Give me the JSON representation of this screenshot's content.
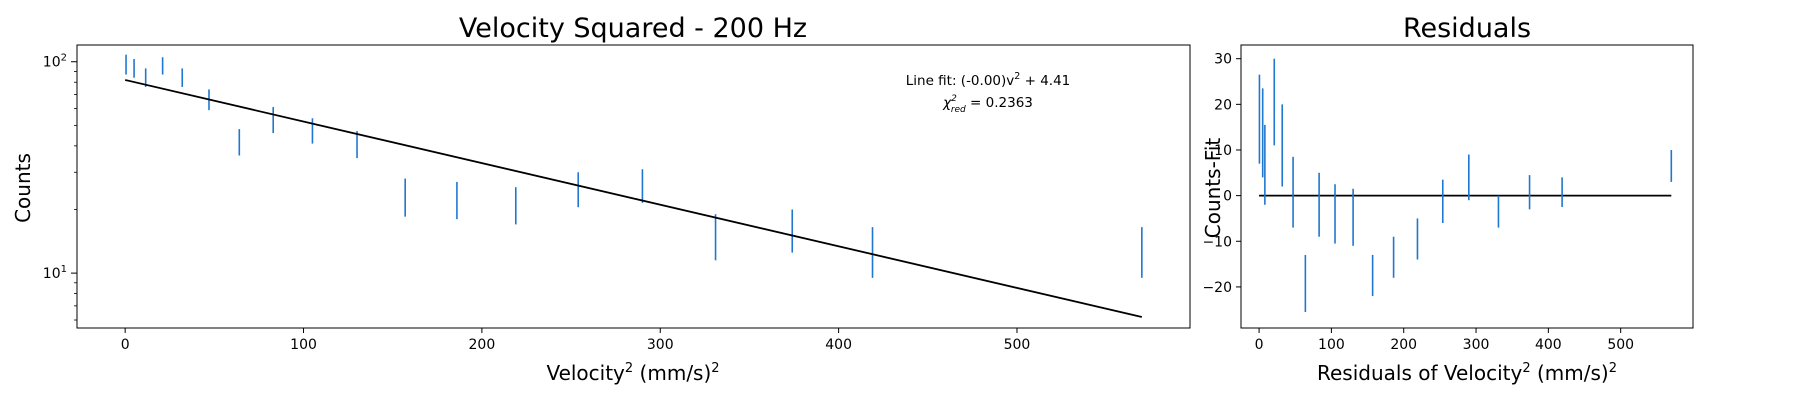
{
  "chart_data": [
    {
      "type": "scatter",
      "title": "Velocity Squared - 200 Hz",
      "xlabel_base": "Velocity",
      "xlabel_sup": "2",
      "xlabel_rest": " (mm/s)",
      "xlabel_sup2": "2",
      "ylabel": "Counts",
      "xlim": [
        -27,
        597
      ],
      "ylim": [
        5.5,
        120
      ],
      "yscale": "log",
      "x_ticks": [
        0,
        100,
        200,
        300,
        400,
        500
      ],
      "y_major_ticks": [
        {
          "value": 10,
          "base": "10",
          "exp": "1"
        },
        {
          "value": 100,
          "base": "10",
          "exp": "2"
        }
      ],
      "grid": false,
      "annotation": {
        "line1_prefix": "Line fit: (-0.00)v",
        "line1_sup": "2",
        "line1_suffix": " + 4.41",
        "line2_chi": "χ",
        "line2_sup": "2",
        "line2_sub": "red",
        "line2_value": " = 0.2363"
      },
      "fit": {
        "x": [
          0,
          570
        ],
        "y": [
          82,
          6.2
        ]
      },
      "error_color": "#1f77d0",
      "fit_color": "#000000",
      "points": [
        {
          "x": 0.5,
          "lo": 87,
          "hi": 108
        },
        {
          "x": 5,
          "lo": 84,
          "hi": 103
        },
        {
          "x": 11.5,
          "lo": 76,
          "hi": 93
        },
        {
          "x": 21,
          "lo": 87,
          "hi": 105
        },
        {
          "x": 32,
          "lo": 76,
          "hi": 93
        },
        {
          "x": 47,
          "lo": 59,
          "hi": 74
        },
        {
          "x": 64,
          "lo": 36,
          "hi": 48
        },
        {
          "x": 83,
          "lo": 46,
          "hi": 61
        },
        {
          "x": 105,
          "lo": 41,
          "hi": 54
        },
        {
          "x": 130,
          "lo": 35,
          "hi": 47
        },
        {
          "x": 157,
          "lo": 18.5,
          "hi": 28
        },
        {
          "x": 186,
          "lo": 18,
          "hi": 27
        },
        {
          "x": 219,
          "lo": 17,
          "hi": 25.5
        },
        {
          "x": 254,
          "lo": 20.5,
          "hi": 30
        },
        {
          "x": 290,
          "lo": 21.5,
          "hi": 31
        },
        {
          "x": 331,
          "lo": 11.5,
          "hi": 19
        },
        {
          "x": 374,
          "lo": 12.5,
          "hi": 20
        },
        {
          "x": 419,
          "lo": 9.5,
          "hi": 16.5
        },
        {
          "x": 570,
          "lo": 9.5,
          "hi": 16.5
        }
      ]
    },
    {
      "type": "scatter",
      "title": "Residuals",
      "xlabel_base": "Residuals of Velocity",
      "xlabel_sup": "2",
      "xlabel_rest": " (mm/s)",
      "xlabel_sup2": "2",
      "ylabel": "Counts-Fit",
      "xlim": [
        -25,
        600
      ],
      "ylim": [
        -29,
        33
      ],
      "yscale": "linear",
      "x_ticks": [
        0,
        100,
        200,
        300,
        400,
        500
      ],
      "y_ticks": [
        -20,
        -10,
        0,
        10,
        20,
        30
      ],
      "y_tick_labels": [
        "−20",
        "−10",
        "0",
        "10",
        "20",
        "30"
      ],
      "grid": false,
      "zero_line": {
        "x": [
          0,
          570
        ],
        "y": 0
      },
      "error_color": "#1f77d0",
      "zero_color": "#000000",
      "points": [
        {
          "x": 0.5,
          "lo": 7,
          "hi": 26.5
        },
        {
          "x": 5,
          "lo": 4,
          "hi": 23.5
        },
        {
          "x": 8,
          "lo": -2,
          "hi": 15.5
        },
        {
          "x": 21,
          "lo": 11,
          "hi": 30
        },
        {
          "x": 32,
          "lo": 2,
          "hi": 20
        },
        {
          "x": 47,
          "lo": -7,
          "hi": 8.5
        },
        {
          "x": 64,
          "lo": -25.5,
          "hi": -13
        },
        {
          "x": 83,
          "lo": -9,
          "hi": 5
        },
        {
          "x": 105,
          "lo": -10.5,
          "hi": 2.5
        },
        {
          "x": 130,
          "lo": -11,
          "hi": 1.5
        },
        {
          "x": 157,
          "lo": -22,
          "hi": -13
        },
        {
          "x": 186,
          "lo": -18,
          "hi": -9
        },
        {
          "x": 219,
          "lo": -14,
          "hi": -5
        },
        {
          "x": 254,
          "lo": -6,
          "hi": 3.5
        },
        {
          "x": 290,
          "lo": -1,
          "hi": 9
        },
        {
          "x": 331,
          "lo": -7,
          "hi": 0
        },
        {
          "x": 374,
          "lo": -3,
          "hi": 4.5
        },
        {
          "x": 419,
          "lo": -2.5,
          "hi": 4
        },
        {
          "x": 570,
          "lo": 3,
          "hi": 10
        }
      ]
    }
  ]
}
